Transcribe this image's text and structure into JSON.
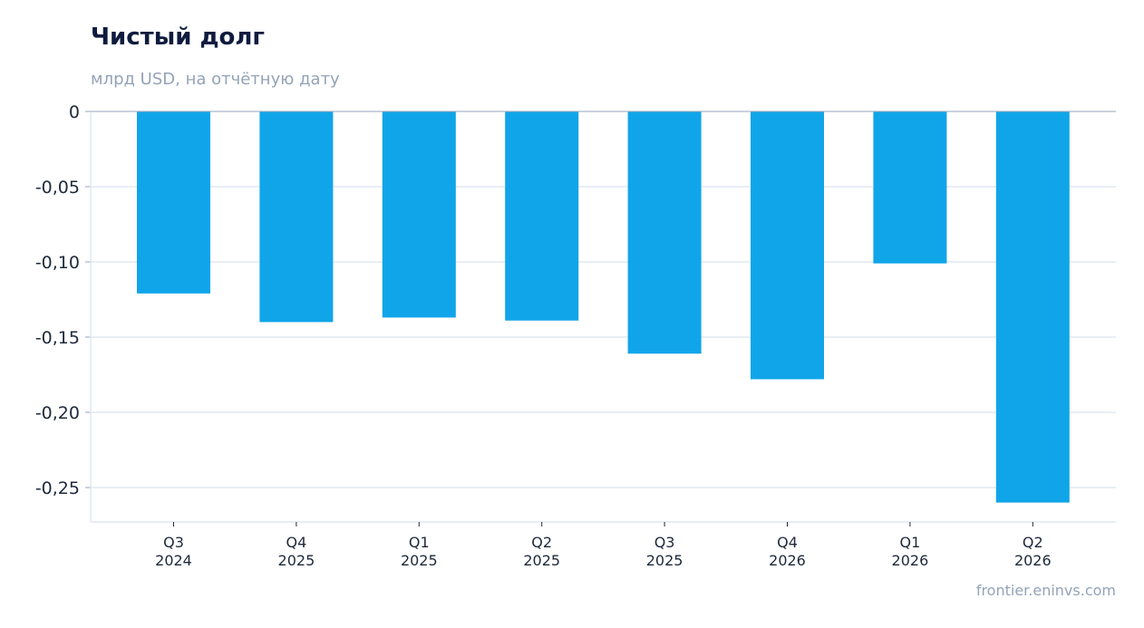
{
  "page": {
    "title": "Чистый долг",
    "subtitle": "млрд USD, на отчётную дату",
    "watermark": "frontier.eninvs.com"
  },
  "chart_data": {
    "type": "bar",
    "title": "Чистый долг",
    "subtitle": "млрд USD, на отчётную дату",
    "xlabel": "",
    "ylabel": "",
    "categories": [
      [
        "Q3",
        "2024"
      ],
      [
        "Q4",
        "2025"
      ],
      [
        "Q1",
        "2025"
      ],
      [
        "Q2",
        "2025"
      ],
      [
        "Q3",
        "2025"
      ],
      [
        "Q4",
        "2026"
      ],
      [
        "Q1",
        "2026"
      ],
      [
        "Q2",
        "2026"
      ]
    ],
    "values": [
      -0.121,
      -0.14,
      -0.137,
      -0.139,
      -0.161,
      -0.178,
      -0.101,
      -0.26
    ],
    "ylim": [
      -0.273,
      0
    ],
    "yticks": [
      0,
      -0.05,
      -0.1,
      -0.15,
      -0.2,
      -0.25
    ],
    "ytick_labels": [
      "0",
      "-0,05",
      "-0,10",
      "-0,15",
      "-0,20",
      "-0,25"
    ],
    "grid": true,
    "colors": {
      "bar": "#10a5e9",
      "grid": "#e2e8f0",
      "axis": "#94a3b8",
      "text": "#1e293b"
    }
  }
}
